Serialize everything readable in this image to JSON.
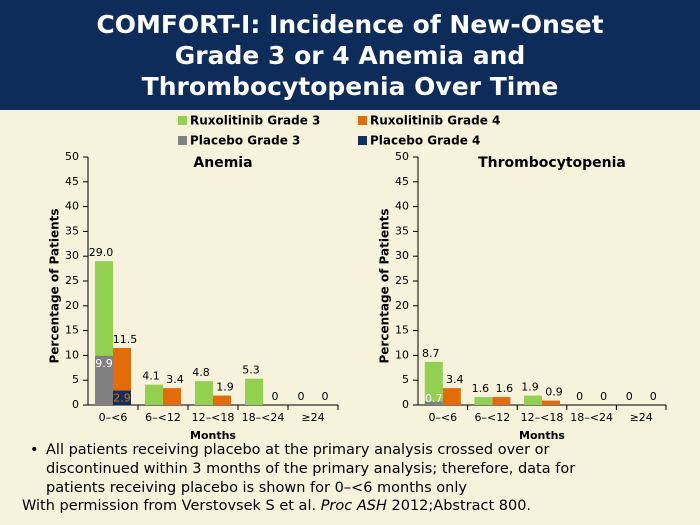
{
  "header": {
    "title": "COMFORT-I: Incidence of New-Onset Grade 3 or 4 Anemia and Thrombocytopenia Over Time"
  },
  "legend": [
    {
      "name": "Ruxolitinib Grade 3",
      "color": "#92d050"
    },
    {
      "name": "Ruxolitinib Grade 4",
      "color": "#e36c09"
    },
    {
      "name": "Placebo Grade 3",
      "color": "#808080"
    },
    {
      "name": "Placebo Grade 4",
      "color": "#0f2f5c"
    }
  ],
  "chart_data": [
    {
      "type": "bar",
      "title": "Anemia",
      "ylabel": "Percentage of Patients",
      "xlabel": "Months",
      "categories": [
        "0–<6",
        "6–<12",
        "12–<18",
        "18–<24",
        "≥24"
      ],
      "ylim": [
        0,
        50
      ],
      "yticks": [
        0,
        5,
        10,
        15,
        20,
        25,
        30,
        35,
        40,
        45,
        50
      ],
      "series": [
        {
          "values": [
            29.0,
            4.1,
            4.8,
            5.3,
            0
          ],
          "value_labels": [
            "29.0",
            "4.1",
            "4.8",
            "5.3",
            "0"
          ]
        },
        {
          "values": [
            11.5,
            3.4,
            1.9,
            0,
            0
          ]
        },
        {
          "values": [
            9.9,
            null,
            null,
            null,
            null
          ]
        },
        {
          "values": [
            2.9,
            null,
            null,
            null,
            null
          ]
        }
      ]
    },
    {
      "type": "bar",
      "title": "Thrombocytopenia",
      "ylabel": "Percentage of Patients",
      "xlabel": "Months",
      "categories": [
        "0–<6",
        "6–<12",
        "12–<18",
        "18–<24",
        "≥24"
      ],
      "ylim": [
        0,
        50
      ],
      "yticks": [
        0,
        5,
        10,
        15,
        20,
        25,
        30,
        35,
        40,
        45,
        50
      ],
      "series": [
        {
          "values": [
            8.7,
            1.6,
            1.9,
            0,
            0
          ]
        },
        {
          "values": [
            3.4,
            1.6,
            0.9,
            0,
            0
          ]
        },
        {
          "values": [
            0.7,
            null,
            null,
            null,
            null
          ]
        },
        {
          "values": [
            0,
            null,
            null,
            null,
            null
          ]
        }
      ]
    }
  ],
  "footnote": "All patients receiving placebo at the primary analysis crossed over or discontinued within 3 months of the primary analysis; therefore, data for patients receiving placebo is shown for 0–<6 months only",
  "citation": {
    "before": "With permission from Verstovsek S et al. ",
    "journal": "Proc ASH",
    "after": " 2012;Abstract 800."
  }
}
